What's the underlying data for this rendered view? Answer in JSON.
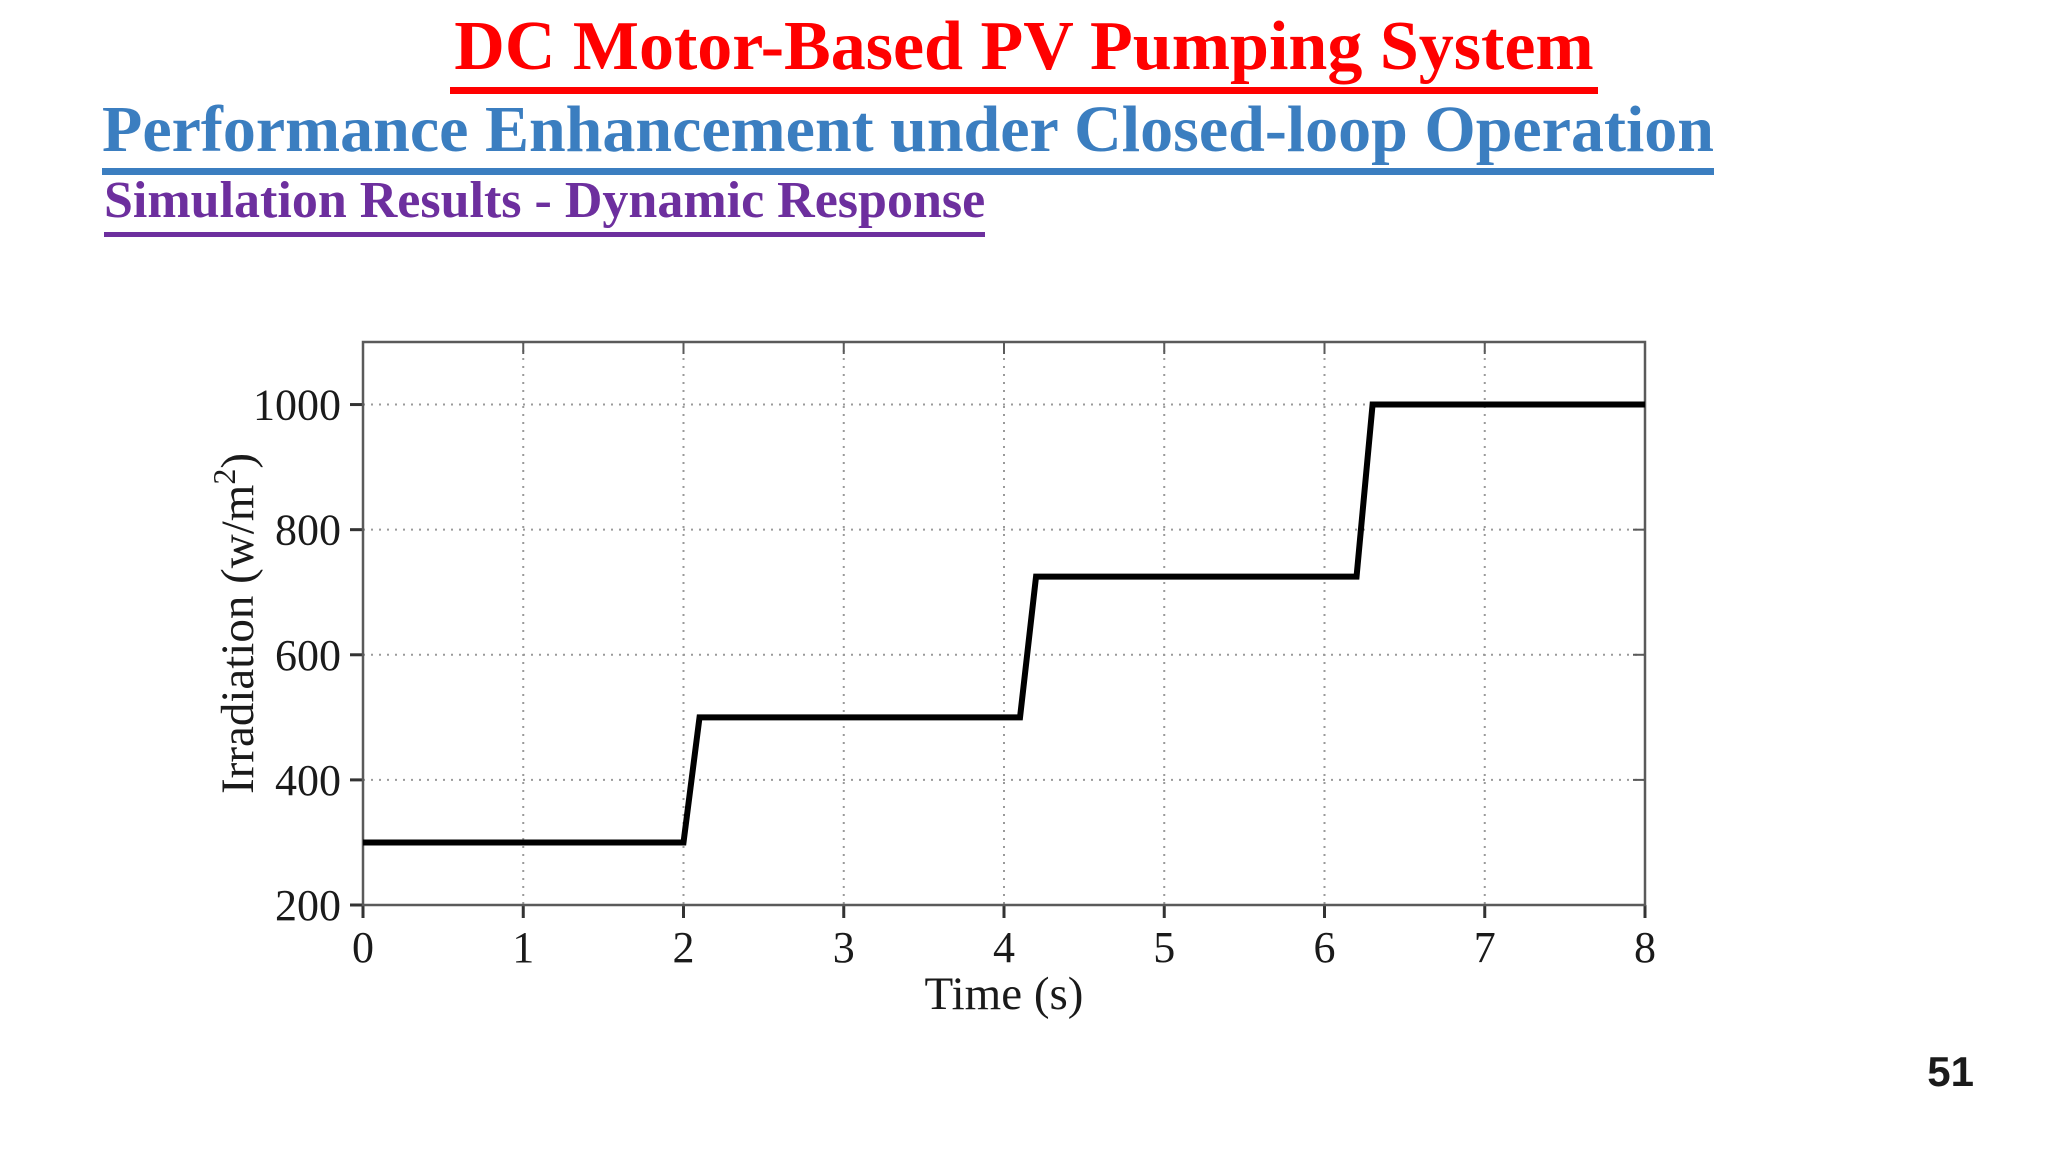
{
  "slide": {
    "title": "DC Motor-Based PV Pumping System",
    "subtitle": "Performance Enhancement under Closed-loop Operation",
    "section_heading": "Simulation Results - Dynamic Response",
    "page_number": "51",
    "colors": {
      "title": "#ff0000",
      "subtitle": "#3b7ec0",
      "section_heading": "#6d2f9e"
    }
  },
  "chart_data": {
    "type": "line",
    "description": "Step profile of solar irradiation versus time",
    "xlabel": "Time (s)",
    "ylabel": "Irradiation (w/m²)",
    "x": [
      0,
      2.0,
      2.1,
      4.1,
      4.2,
      6.2,
      6.3,
      8
    ],
    "y": [
      300,
      300,
      500,
      500,
      725,
      725,
      1000,
      1000
    ],
    "xlim": [
      0,
      8
    ],
    "ylim": [
      200,
      1100
    ],
    "xticks": [
      0,
      1,
      2,
      3,
      4,
      5,
      6,
      7,
      8
    ],
    "yticks": [
      200,
      400,
      600,
      800,
      1000
    ],
    "grid": "dotted",
    "grid_color": "#9a9a9a",
    "axis_color": "#5a5a5a",
    "line_color": "#000000",
    "line_width": 6,
    "legend": "none"
  }
}
